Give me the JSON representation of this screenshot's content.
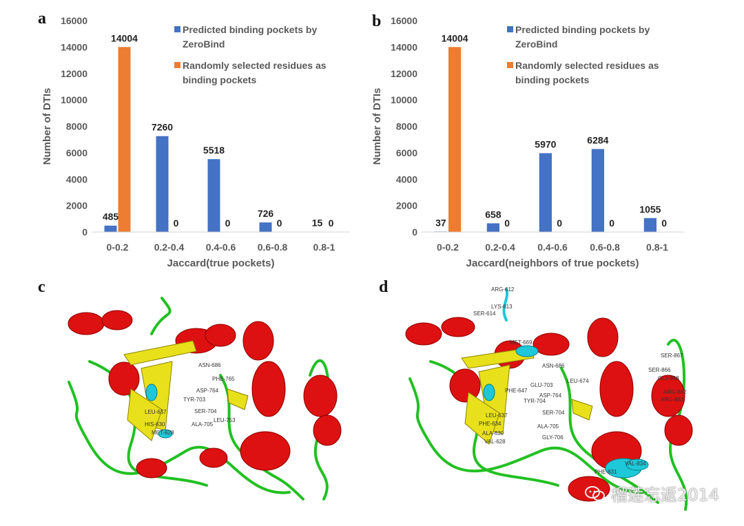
{
  "panels": {
    "a": "a",
    "b": "b",
    "c": "c",
    "d": "d"
  },
  "colors": {
    "series1": "#4472c4",
    "series2": "#ed7d31"
  },
  "chart_data": [
    {
      "type": "bar",
      "panel": "a",
      "categories": [
        "0-0.2",
        "0.2-0.4",
        "0.4-0.6",
        "0.6-0.8",
        "0.8-1"
      ],
      "series": [
        {
          "name": "Predicted binding pockets by ZeroBind",
          "color": "#4472c4",
          "values": [
            485,
            7260,
            5518,
            726,
            15
          ]
        },
        {
          "name": "Randomly selected residues as binding pockets",
          "color": "#ed7d31",
          "values": [
            14004,
            0,
            0,
            0,
            0
          ]
        }
      ],
      "legend_lines": [
        [
          "Predicted binding pockets by",
          "ZeroBind"
        ],
        [
          "Randomly selected residues as",
          "binding pockets"
        ]
      ],
      "xlabel": "Jaccard(true pockets)",
      "ylabel": "Number of DTIs",
      "ylim": [
        0,
        16000
      ],
      "yticks": [
        "0",
        "2000",
        "4000",
        "6000",
        "8000",
        "10000",
        "12000",
        "14000",
        "16000"
      ],
      "legend_position": "top-right",
      "grid": false
    },
    {
      "type": "bar",
      "panel": "b",
      "categories": [
        "0-0.2",
        "0.2-0.4",
        "0.4-0.6",
        "0.6-0.8",
        "0.8-1"
      ],
      "series": [
        {
          "name": "Predicted binding pockets by ZeroBind",
          "color": "#4472c4",
          "values": [
            37,
            658,
            5970,
            6284,
            1055
          ]
        },
        {
          "name": "Randomly selected residues as binding pockets",
          "color": "#ed7d31",
          "values": [
            14004,
            0,
            0,
            0,
            0
          ]
        }
      ],
      "legend_lines": [
        [
          "Predicted binding pockets by",
          "ZeroBind"
        ],
        [
          "Randomly selected residues as",
          "binding pockets"
        ]
      ],
      "xlabel": "Jaccard(neighbors of true pockets)",
      "ylabel": "Number of DTIs",
      "ylim": [
        0,
        16000
      ],
      "yticks": [
        "0",
        "2000",
        "4000",
        "6000",
        "8000",
        "10000",
        "12000",
        "14000",
        "16000"
      ],
      "legend_position": "top-right",
      "grid": false
    }
  ],
  "structure_c": {
    "labels": [
      "ASN-686",
      "PHE-765",
      "ASP-764",
      "TYR-703",
      "SER-704",
      "ALA-705",
      "LEU-637",
      "HIS-630",
      "MET-628",
      "LEU-753"
    ]
  },
  "structure_d": {
    "labels": [
      "ARG-612",
      "LYS-613",
      "SER-614",
      "MET-669",
      "ASN-686",
      "LEU-674",
      "GLU-703",
      "ASP-764",
      "TYR-704",
      "PHE-647",
      "SER-704",
      "ALA-705",
      "GLY-706",
      "LEU-637",
      "PHE-634",
      "ALA-630",
      "VAL-628",
      "SER-867",
      "SER-866",
      "GLY-868",
      "ARG-862",
      "ARG-863",
      "VAL-834",
      "PHE-831"
    ]
  },
  "watermark": {
    "text": "榴莲忘返2014"
  }
}
